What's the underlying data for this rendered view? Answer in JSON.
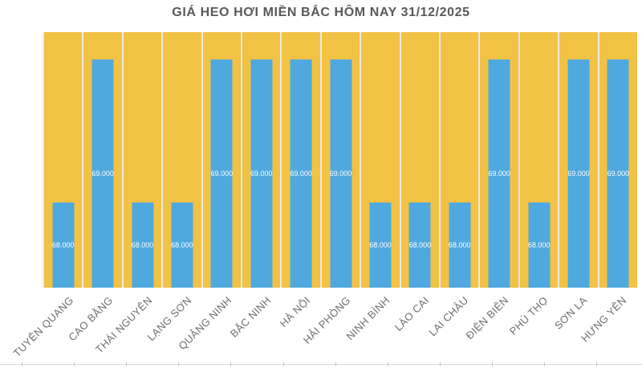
{
  "chart_data": {
    "type": "bar",
    "title": "GIÁ HEO HƠI MIỀN BẮC HÔM NAY 31/12/2025",
    "categories": [
      "TUYÊN QUANG",
      "CAO BẰNG",
      "THÁI NGUYÊN",
      "LẠNG SƠN",
      "QUẢNG NINH",
      "BẮC NINH",
      "HÀ NỘI",
      "HẢI PHÒNG",
      "NINH BÌNH",
      "LÀO CAI",
      "LAI CHÂU",
      "ĐIỆN BIÊN",
      "PHÚ THỌ",
      "SƠN LA",
      "HƯNG YÊN"
    ],
    "values": [
      68000,
      69000,
      68000,
      68000,
      69000,
      69000,
      69000,
      69000,
      68000,
      68000,
      68000,
      69000,
      68000,
      69000,
      69000
    ],
    "value_labels": [
      "68.000",
      "69.000",
      "68.000",
      "68.000",
      "69.000",
      "69.000",
      "69.000",
      "69.000",
      "68.000",
      "68.000",
      "68.000",
      "69.000",
      "68.000",
      "69.000",
      "69.000"
    ],
    "xlabel": "",
    "ylabel": "",
    "legend": false,
    "value_axis_visible": false,
    "gridlines": false,
    "colors": {
      "bar": "#4FA9DF",
      "column_track": "#F2C245",
      "title_text": "#595959",
      "category_text": "#6F6F6F",
      "value_label_text": "#FFFFFF"
    }
  }
}
